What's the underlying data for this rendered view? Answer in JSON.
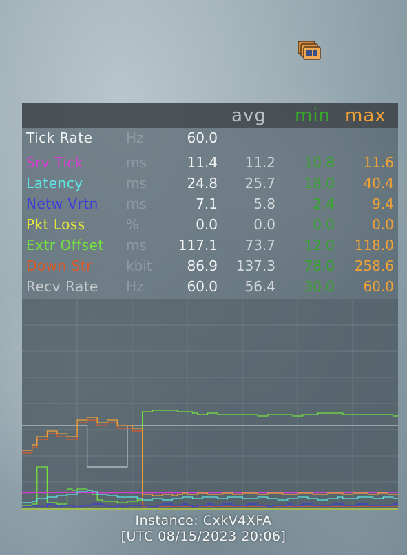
{
  "header": {
    "avg": "avg",
    "min": "min",
    "max": "max"
  },
  "colors": {
    "min": "#37a82c",
    "max": "#f0a236",
    "tick_rate": "#f1f3f4",
    "srv_tick": "#d63fd1",
    "latency": "#5ee6e6",
    "netw_vrtn": "#3b3bdc",
    "pkt_loss": "#e8e83a",
    "extr_offset": "#74e33f",
    "down_str": "#dd5a2b",
    "recv_rate": "#c4cacd"
  },
  "stats": [
    {
      "name": "Tick Rate",
      "unit": "Hz",
      "cur": "60.0",
      "avg": "",
      "min": "",
      "max": ""
    },
    {
      "name": "Srv Tick",
      "unit": "ms",
      "cur": "11.4",
      "avg": "11.2",
      "min": "10.8",
      "max": "11.6"
    },
    {
      "name": "Latency",
      "unit": "ms",
      "cur": "24.8",
      "avg": "25.7",
      "min": "18.0",
      "max": "40.4"
    },
    {
      "name": "Netw Vrtn",
      "unit": "ms",
      "cur": "7.1",
      "avg": "5.8",
      "min": "2.4",
      "max": "9.4"
    },
    {
      "name": "Pkt Loss",
      "unit": "%",
      "cur": "0.0",
      "avg": "0.0",
      "min": "0.0",
      "max": "0.0"
    },
    {
      "name": "Extr Offset",
      "unit": "ms",
      "cur": "117.1",
      "avg": "73.7",
      "min": "12.0",
      "max": "118.0"
    },
    {
      "name": "Down Str",
      "unit": "kbit",
      "cur": "86.9",
      "avg": "137.3",
      "min": "78.0",
      "max": "258.6"
    },
    {
      "name": "Recv Rate",
      "unit": "Hz",
      "cur": "60.0",
      "avg": "56.4",
      "min": "30.0",
      "max": "60.0"
    }
  ],
  "chart_data": {
    "type": "line",
    "grid": true,
    "series": [
      {
        "color": "#74e33f",
        "values": [
          2,
          2,
          3,
          30,
          30,
          4,
          4,
          3,
          3,
          14,
          13,
          14,
          14,
          13,
          10,
          6,
          5,
          5,
          5,
          4,
          4,
          5,
          5,
          6,
          70,
          70,
          71,
          71,
          71,
          71,
          71,
          70,
          70,
          70,
          69,
          68,
          68,
          69,
          69,
          68,
          68,
          68,
          68,
          68,
          68,
          68,
          68,
          67,
          67,
          68,
          68,
          68,
          68,
          68,
          67,
          67,
          68,
          68,
          68,
          69,
          69,
          69,
          69,
          69,
          68,
          68,
          68,
          68,
          68,
          68,
          68,
          68,
          68,
          68,
          67,
          68
        ]
      },
      {
        "color": "#c4cacd",
        "values": [
          60,
          60,
          60,
          60,
          60,
          60,
          60,
          60,
          60,
          60,
          60,
          60,
          60,
          30,
          30,
          30,
          30,
          30,
          30,
          30,
          30,
          60,
          60,
          60,
          60,
          60,
          60,
          60,
          60,
          60,
          60,
          60,
          60,
          60,
          60,
          60,
          60,
          60,
          60,
          60,
          60,
          60,
          60,
          60,
          60,
          60,
          60,
          60,
          60,
          60,
          60,
          60,
          60,
          60,
          60,
          60,
          60,
          60,
          60,
          60,
          60,
          60,
          60,
          60,
          60,
          60,
          60,
          60,
          60,
          60,
          60,
          60,
          60,
          60,
          60,
          60
        ]
      },
      {
        "color": "#d63fd1",
        "values": [
          11.2,
          11.2,
          11.3,
          11.3,
          11.2,
          11.3,
          11.4,
          11.4,
          11.4,
          11.4,
          11.3,
          11.3,
          11.3,
          11.2,
          11.2,
          11.1,
          11.1,
          11.2,
          11.2,
          11.3,
          11.3,
          11.2,
          11.2,
          11.2,
          11.2,
          11.2,
          11.2,
          11.2,
          11.2,
          11.2,
          11.2,
          11.2,
          11.2,
          11.2,
          11.2,
          11.2,
          11.2,
          11.2,
          11.2,
          11.2,
          11.2,
          11.2,
          11.2,
          11.2,
          11.2,
          11.2,
          11.1,
          11.2,
          11.2,
          11.2,
          11.2,
          11.2,
          11.2,
          11.2,
          11.2,
          11.2,
          11.2,
          11.2,
          11.2,
          11.3,
          11.3,
          11.3,
          11.3,
          11.3,
          11.3,
          11.3,
          11.3,
          11.3,
          11.3,
          11.3,
          11.3,
          11.3,
          11.3,
          11.4,
          11.4,
          11.4
        ]
      },
      {
        "color": "#dd5a2b",
        "values": [
          40,
          40,
          44,
          50,
          50,
          54,
          54,
          52,
          52,
          50,
          50,
          62,
          62,
          64,
          64,
          60,
          60,
          62,
          62,
          58,
          58,
          58,
          56,
          56,
          1,
          1,
          1,
          1,
          1,
          1,
          1,
          1,
          1,
          1,
          1,
          1,
          1,
          1,
          1,
          1,
          1,
          1,
          1,
          1,
          1,
          1,
          1,
          1,
          1,
          1,
          1,
          1,
          1,
          1,
          1,
          1,
          1,
          1,
          1,
          1,
          1,
          1,
          1,
          1,
          1,
          1,
          1,
          1,
          1,
          1,
          1,
          1,
          1,
          1,
          1,
          1
        ]
      },
      {
        "color": "#f0a236",
        "values": [
          42,
          42,
          46,
          52,
          52,
          56,
          56,
          54,
          54,
          52,
          52,
          64,
          64,
          66,
          66,
          62,
          62,
          64,
          64,
          60,
          60,
          60,
          58,
          58,
          10,
          10,
          9,
          9,
          10,
          10,
          9,
          10,
          11,
          10,
          10,
          11,
          11,
          10,
          10,
          10,
          11,
          11,
          10,
          10,
          11,
          11,
          11,
          10,
          10,
          11,
          11,
          11,
          10,
          10,
          10,
          11,
          11,
          11,
          10,
          10,
          10,
          11,
          11,
          11,
          10,
          10,
          11,
          11,
          11,
          10,
          10,
          11,
          11,
          10,
          10,
          10
        ]
      },
      {
        "color": "#5ee6e6",
        "values": [
          4,
          4,
          5,
          7,
          7,
          8,
          8,
          9,
          9,
          10,
          10,
          12,
          12,
          13,
          12,
          10,
          10,
          9,
          9,
          8,
          8,
          8,
          8,
          7,
          6,
          6,
          7,
          7,
          6,
          6,
          7,
          7,
          8,
          8,
          7,
          7,
          8,
          8,
          8,
          7,
          7,
          8,
          8,
          8,
          7,
          7,
          7,
          8,
          8,
          7,
          7,
          6,
          6,
          7,
          7,
          8,
          8,
          7,
          7,
          6,
          6,
          7,
          7,
          8,
          7,
          7,
          7,
          8,
          8,
          8,
          7,
          7,
          8,
          8,
          7,
          7
        ]
      },
      {
        "color": "#3b3bdc",
        "values": [
          1,
          1,
          2,
          1,
          1,
          3,
          2,
          1,
          2,
          2,
          1,
          1,
          2,
          2,
          3,
          3,
          2,
          1,
          1,
          2,
          1,
          2,
          2,
          2,
          2,
          1,
          1,
          2,
          3,
          3,
          2,
          2,
          3,
          2,
          1,
          2,
          2,
          3,
          2,
          2,
          3,
          3,
          2,
          2,
          2,
          3,
          3,
          2,
          2,
          1,
          2,
          2,
          2,
          3,
          2,
          2,
          3,
          3,
          2,
          2,
          2,
          2,
          3,
          3,
          2,
          2,
          2,
          3,
          3,
          2,
          2,
          2,
          2,
          2,
          3,
          2
        ]
      }
    ]
  },
  "footer": {
    "instance": "Instance: CxkV4XFA",
    "timestamp": "[UTC 08/15/2023 20:06]"
  }
}
